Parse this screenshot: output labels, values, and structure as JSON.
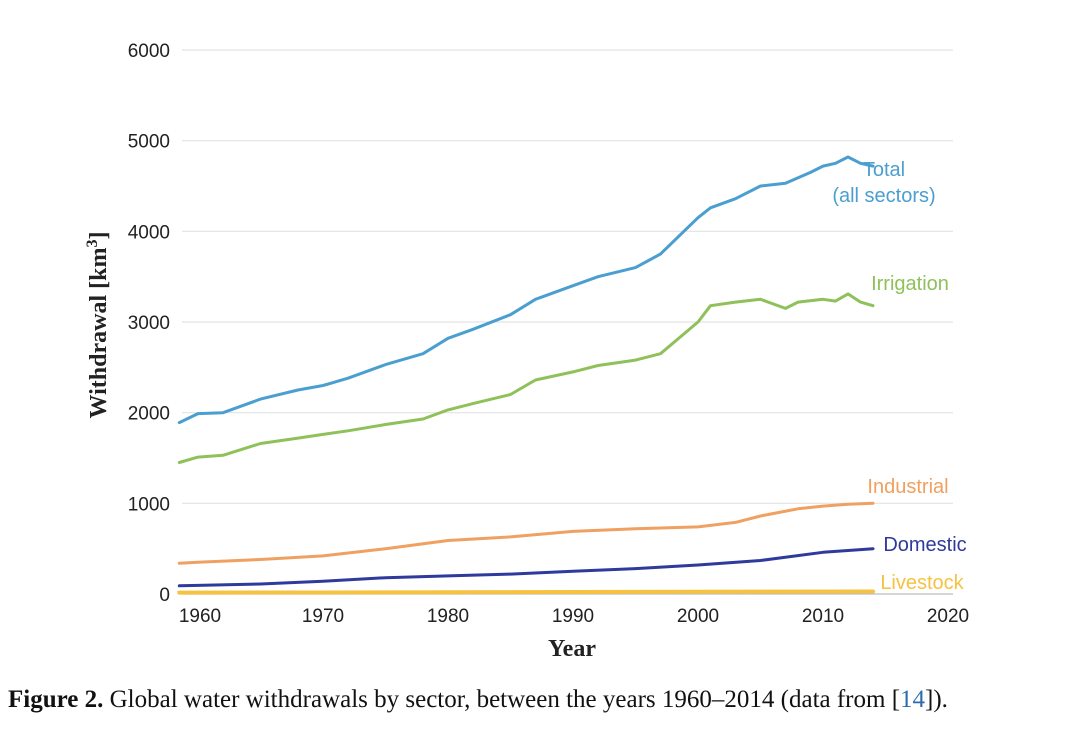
{
  "chart_data": {
    "type": "line",
    "title": "",
    "xlabel": "Year",
    "ylabel_prefix": "Withdrawal [km",
    "ylabel_sup": "3",
    "ylabel_suffix": "]",
    "xlim": [
      1960,
      2020
    ],
    "ylim": [
      0,
      6000
    ],
    "grid": true,
    "x_ticks": [
      1960,
      1970,
      1980,
      1990,
      2000,
      2010,
      2020
    ],
    "y_ticks": [
      0,
      1000,
      2000,
      3000,
      4000,
      5000,
      6000
    ],
    "series": [
      {
        "name": "Total",
        "label_lines": [
          "Total",
          "(all sectors)"
        ],
        "color": "#4a9fd0",
        "x": [
          1958,
          1960,
          1962,
          1965,
          1968,
          1970,
          1972,
          1975,
          1978,
          1980,
          1982,
          1985,
          1987,
          1990,
          1992,
          1995,
          1997,
          2000,
          2001,
          2003,
          2005,
          2007,
          2009,
          2010,
          2011,
          2012,
          2013,
          2014
        ],
        "values": [
          1890,
          1990,
          2000,
          2150,
          2250,
          2300,
          2380,
          2530,
          2650,
          2820,
          2920,
          3080,
          3250,
          3400,
          3500,
          3600,
          3750,
          4150,
          4260,
          4360,
          4500,
          4530,
          4650,
          4720,
          4750,
          4820,
          4750,
          4720
        ]
      },
      {
        "name": "Irrigation",
        "label_lines": [
          "Irrigation"
        ],
        "color": "#8fc15a",
        "x": [
          1958,
          1960,
          1962,
          1965,
          1968,
          1970,
          1972,
          1975,
          1978,
          1980,
          1982,
          1985,
          1987,
          1990,
          1992,
          1995,
          1997,
          2000,
          2001,
          2003,
          2005,
          2007,
          2008,
          2010,
          2011,
          2012,
          2013,
          2014
        ],
        "values": [
          1450,
          1510,
          1530,
          1660,
          1720,
          1760,
          1800,
          1870,
          1930,
          2030,
          2100,
          2200,
          2360,
          2450,
          2520,
          2580,
          2650,
          3000,
          3180,
          3220,
          3250,
          3150,
          3220,
          3250,
          3230,
          3310,
          3220,
          3180
        ]
      },
      {
        "name": "Industrial",
        "label_lines": [
          "Industrial"
        ],
        "color": "#f0a060",
        "x": [
          1958,
          1960,
          1965,
          1970,
          1975,
          1980,
          1985,
          1990,
          1995,
          2000,
          2003,
          2005,
          2008,
          2010,
          2012,
          2014
        ],
        "values": [
          340,
          350,
          380,
          420,
          500,
          590,
          630,
          690,
          720,
          740,
          790,
          860,
          940,
          970,
          990,
          1000
        ]
      },
      {
        "name": "Domestic",
        "label_lines": [
          "Domestic"
        ],
        "color": "#2e3a9c",
        "x": [
          1958,
          1960,
          1965,
          1970,
          1975,
          1980,
          1985,
          1990,
          1995,
          2000,
          2005,
          2010,
          2012,
          2014
        ],
        "values": [
          90,
          95,
          110,
          140,
          180,
          200,
          220,
          250,
          280,
          320,
          370,
          460,
          480,
          500
        ]
      },
      {
        "name": "Livestock",
        "label_lines": [
          "Livestock"
        ],
        "color": "#f5c242",
        "x": [
          1958,
          1970,
          1980,
          1990,
          2000,
          2014
        ],
        "values": [
          15,
          17,
          20,
          22,
          25,
          28
        ]
      }
    ]
  },
  "caption": {
    "label": "Figure 2.",
    "text_before": " Global water withdrawals by sector, between the years 1960–2014 (data from [",
    "ref": "14",
    "text_after": "])."
  }
}
